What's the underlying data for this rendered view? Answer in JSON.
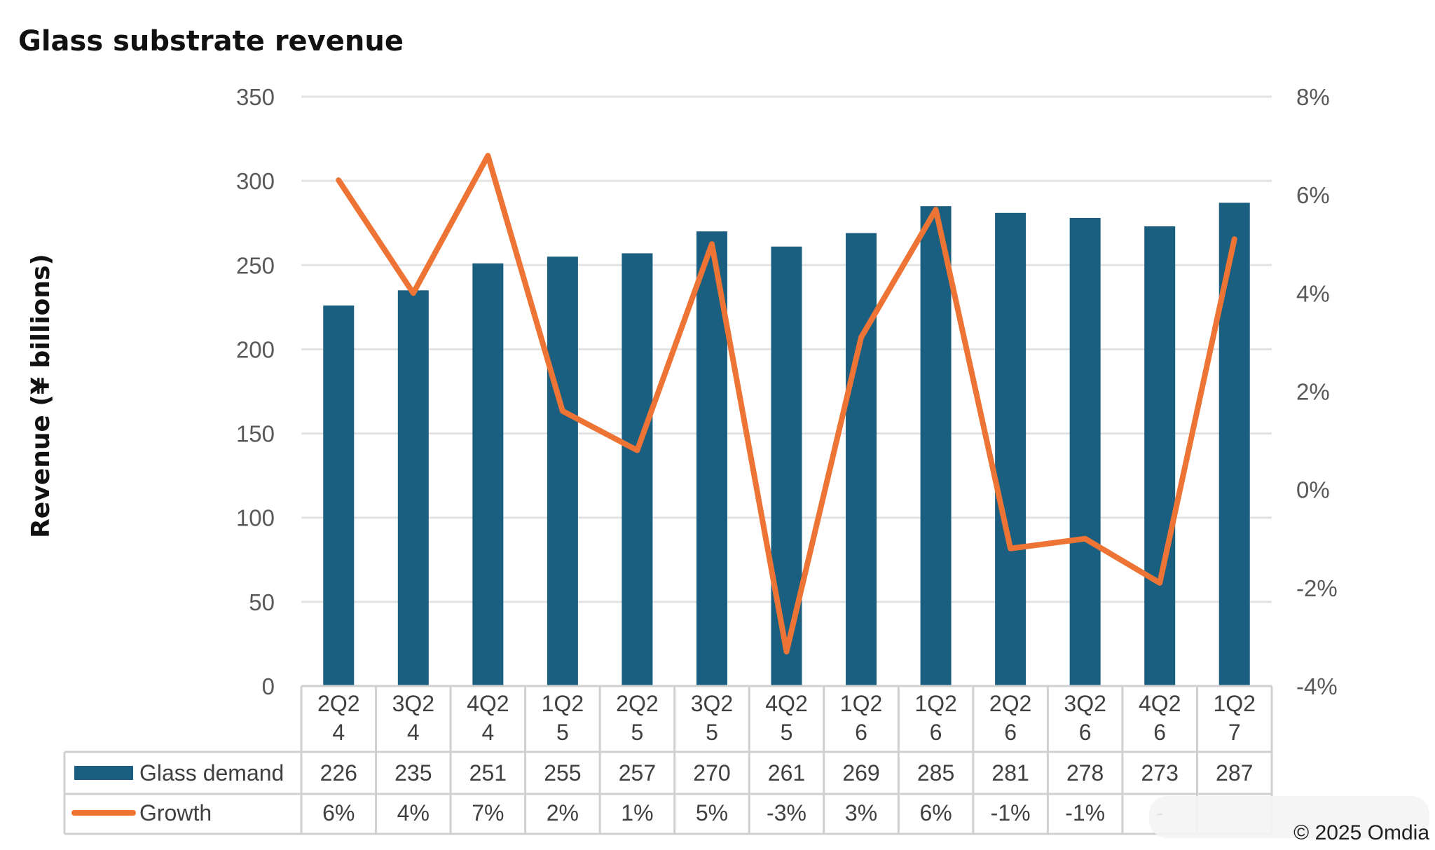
{
  "chart_data": {
    "type": "bar",
    "title": "Glass substrate revenue",
    "ylabel": "Revenue (¥ billions)",
    "categories": [
      [
        "2Q2",
        "4"
      ],
      [
        "3Q2",
        "4"
      ],
      [
        "4Q2",
        "4"
      ],
      [
        "1Q2",
        "5"
      ],
      [
        "2Q2",
        "5"
      ],
      [
        "3Q2",
        "5"
      ],
      [
        "4Q2",
        "5"
      ],
      [
        "1Q2",
        "6"
      ],
      [
        "1Q2",
        "6"
      ],
      [
        "2Q2",
        "6"
      ],
      [
        "3Q2",
        "6"
      ],
      [
        "4Q2",
        "6"
      ],
      [
        "1Q2",
        "7"
      ]
    ],
    "ylim": [
      0,
      350
    ],
    "yticks": [
      "0",
      "50",
      "100",
      "150",
      "200",
      "250",
      "300",
      "350"
    ],
    "y2lim": [
      -4,
      8
    ],
    "y2ticks": [
      "-4%",
      "-2%",
      "0%",
      "2%",
      "4%",
      "6%",
      "8%"
    ],
    "grid": true,
    "series": [
      {
        "name": "Glass demand",
        "kind": "bar",
        "color": "#1a5e80",
        "values": [
          226,
          235,
          251,
          255,
          257,
          270,
          261,
          269,
          285,
          281,
          278,
          273,
          287
        ],
        "labels": [
          "226",
          "235",
          "251",
          "255",
          "257",
          "270",
          "261",
          "269",
          "285",
          "281",
          "278",
          "273",
          "287"
        ]
      },
      {
        "name": "Growth",
        "kind": "line",
        "axis": "right",
        "color": "#ed7434",
        "values": [
          6.3,
          4.0,
          6.8,
          1.6,
          0.8,
          5.0,
          -3.3,
          3.1,
          5.7,
          -1.2,
          -1.0,
          -1.9,
          5.1
        ],
        "labels": [
          "6%",
          "4%",
          "7%",
          "2%",
          "1%",
          "5%",
          "-3%",
          "3%",
          "6%",
          "-1%",
          "-1%",
          "-",
          ""
        ]
      }
    ],
    "legend": "table-left",
    "copyright": "© 2025 Omdia"
  }
}
